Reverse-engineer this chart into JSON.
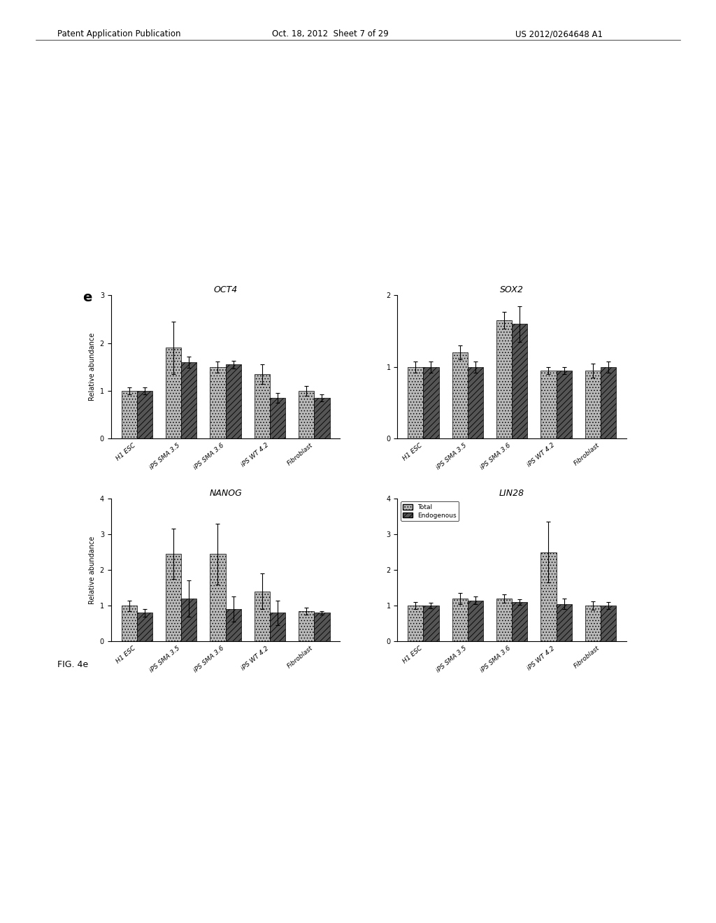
{
  "subplots": [
    {
      "title": "OCT4",
      "ylim": [
        0,
        3
      ],
      "yticks": [
        0,
        1,
        2,
        3
      ],
      "groups": [
        "H1 ESC",
        "iPS SMA 3.5",
        "iPS SMA 3.6",
        "iPS WT 4.2",
        "Fibroblast"
      ],
      "total": [
        1.0,
        1.9,
        1.5,
        1.35,
        1.0
      ],
      "endogenous": [
        1.0,
        1.6,
        1.55,
        0.85,
        0.85
      ],
      "total_err": [
        0.07,
        0.55,
        0.12,
        0.2,
        0.1
      ],
      "endogenous_err": [
        0.07,
        0.12,
        0.08,
        0.1,
        0.08
      ]
    },
    {
      "title": "SOX2",
      "ylim": [
        0,
        2
      ],
      "yticks": [
        0,
        1,
        2
      ],
      "groups": [
        "H1 ESC",
        "iPS SMA 3.5",
        "iPS SMA 3.6",
        "iPS WT 4.2",
        "Fibroblast"
      ],
      "total": [
        1.0,
        1.2,
        1.65,
        0.95,
        0.95
      ],
      "endogenous": [
        1.0,
        1.0,
        1.6,
        0.95,
        1.0
      ],
      "total_err": [
        0.08,
        0.1,
        0.12,
        0.05,
        0.1
      ],
      "endogenous_err": [
        0.08,
        0.08,
        0.25,
        0.05,
        0.08
      ]
    },
    {
      "title": "NANOG",
      "ylim": [
        0,
        4
      ],
      "yticks": [
        0,
        1,
        2,
        3,
        4
      ],
      "groups": [
        "H1 ESC",
        "iPS SMA 3.5",
        "iPS SMA 3.6",
        "iPS WT 4.2",
        "Fibroblast"
      ],
      "total": [
        1.0,
        2.45,
        2.45,
        1.4,
        0.85
      ],
      "endogenous": [
        0.8,
        1.2,
        0.9,
        0.8,
        0.8
      ],
      "total_err": [
        0.15,
        0.7,
        0.85,
        0.5,
        0.1
      ],
      "endogenous_err": [
        0.1,
        0.5,
        0.35,
        0.35,
        0.05
      ]
    },
    {
      "title": "LIN28",
      "ylim": [
        0,
        4
      ],
      "yticks": [
        0,
        1,
        2,
        3,
        4
      ],
      "groups": [
        "H1 ESC",
        "iPS SMA 3.5",
        "iPS SMA 3.6",
        "iPS WT 4.2",
        "Fibroblast"
      ],
      "total": [
        1.0,
        1.2,
        1.2,
        2.5,
        1.0
      ],
      "endogenous": [
        1.0,
        1.15,
        1.1,
        1.05,
        1.0
      ],
      "total_err": [
        0.1,
        0.15,
        0.12,
        0.85,
        0.12
      ],
      "endogenous_err": [
        0.08,
        0.1,
        0.08,
        0.15,
        0.1
      ]
    }
  ],
  "color_total": "#b8b8b8",
  "color_endogenous": "#555555",
  "hatch_total": "....",
  "hatch_endogenous": "////",
  "bar_width": 0.35,
  "ylabel": "Relative abundance",
  "xlabel_rotation": 40,
  "legend_labels": [
    "Total",
    "Endogenous"
  ],
  "panel_label": "e",
  "figure_caption": "FIG. 4e",
  "background_color": "#ffffff",
  "header_left": "Patent Application Publication",
  "header_mid": "Oct. 18, 2012  Sheet 7 of 29",
  "header_right": "US 2012/0264648 A1"
}
